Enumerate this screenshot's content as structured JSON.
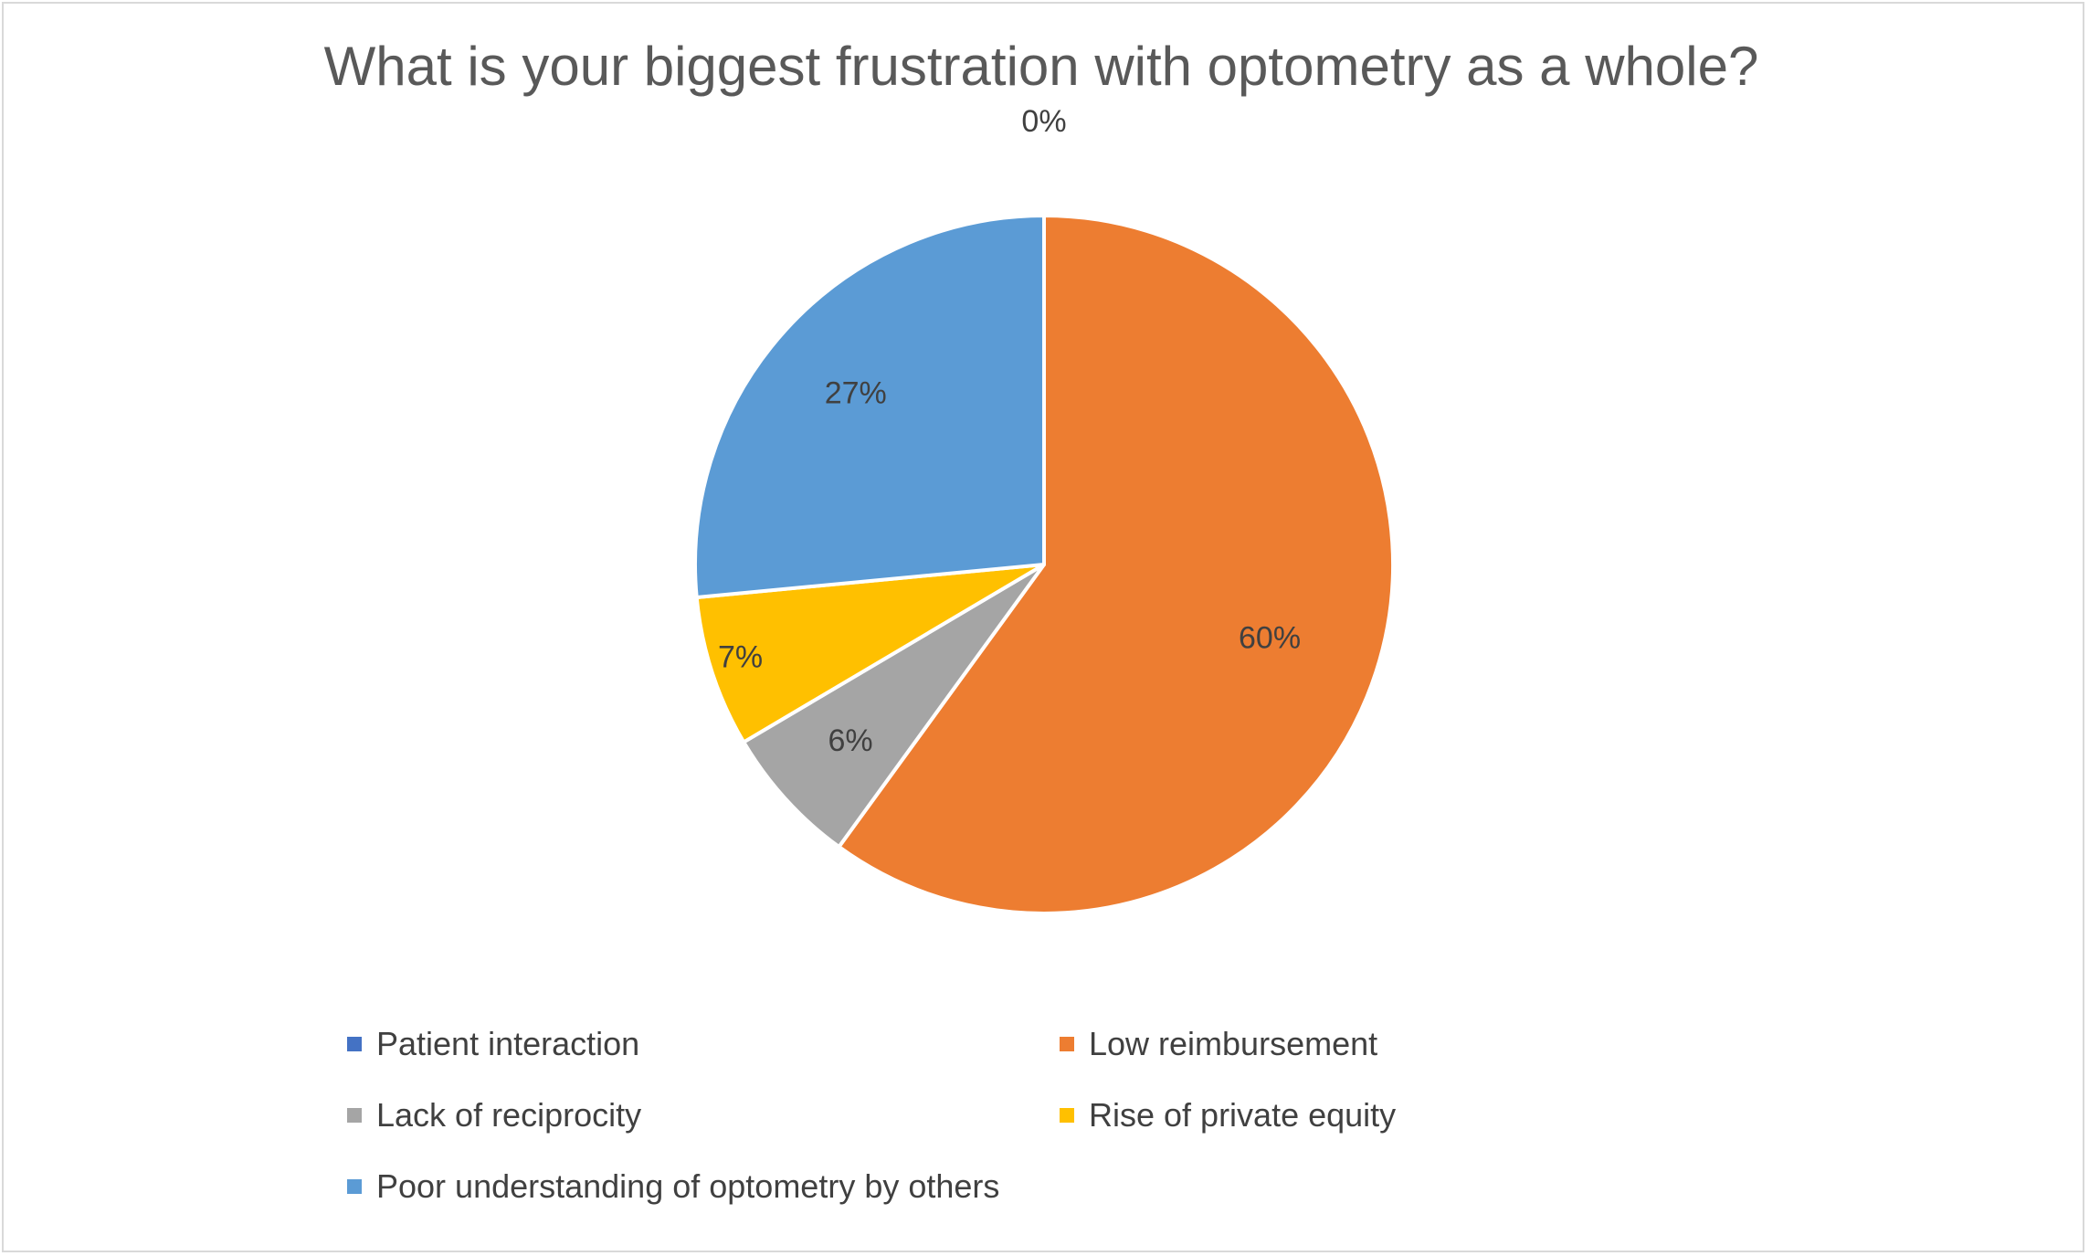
{
  "chart_data": {
    "type": "pie",
    "title": "What is your biggest frustration with optometry as a whole?",
    "categories": [
      "Patient interaction",
      "Low reimbursement",
      "Lack of reciprocity",
      "Rise of private equity",
      "Poor understanding of optometry by others"
    ],
    "values": [
      0.0,
      60.0,
      6.5,
      7.0,
      26.5
    ],
    "data_labels": [
      "0%",
      "60%",
      "6%",
      "7%",
      "27%"
    ],
    "colors": [
      "#4472c4",
      "#ed7d31",
      "#a5a5a5",
      "#ffc000",
      "#5b9bd5"
    ],
    "start_angle": "12 o'clock, clockwise",
    "legend_position": "bottom"
  }
}
